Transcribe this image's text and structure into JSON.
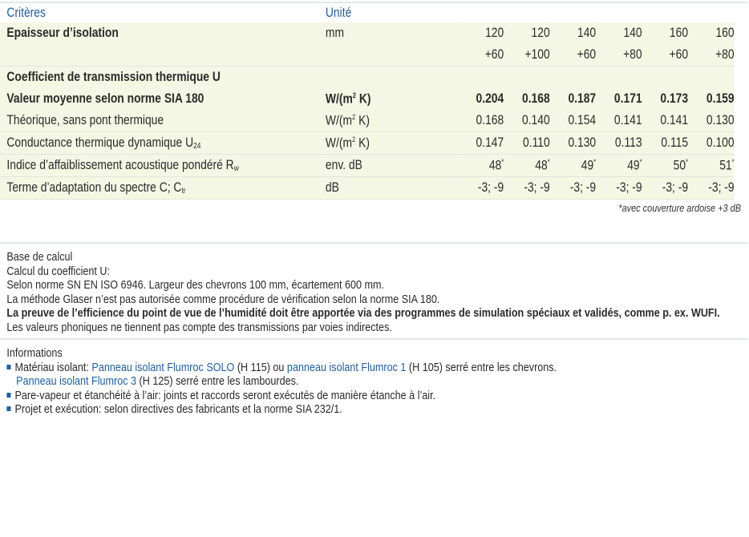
{
  "table": {
    "header": {
      "criteria": "Critères",
      "unit": "Unité"
    },
    "thickness": {
      "label": "Epaisseur d’isolation",
      "unit": "mm",
      "line1": [
        "120",
        "120",
        "140",
        "140",
        "160",
        "160"
      ],
      "line2": [
        "+60",
        "+100",
        "+60",
        "+80",
        "+60",
        "+80"
      ]
    },
    "coef_title": "Coefficient de transmission thermique U",
    "rows": [
      {
        "label": "Valeur moyenne selon norme SIA 180",
        "unit_base": "W/(m",
        "unit_sup": "2",
        "unit_end": " K)",
        "values": [
          "0.204",
          "0.168",
          "0.187",
          "0.171",
          "0.173",
          "0.159"
        ]
      },
      {
        "label": "Théorique, sans pont thermique",
        "unit_base": "W/(m",
        "unit_sup": "2",
        "unit_end": " K)",
        "values": [
          "0.168",
          "0.140",
          "0.154",
          "0.141",
          "0.141",
          "0.130"
        ]
      },
      {
        "label": "Conductance thermique dynamique U",
        "sub": "24",
        "unit_base": "W/(m",
        "unit_sup": "2",
        "unit_end": " K)",
        "values": [
          "0.147",
          "0.110",
          "0.130",
          "0.113",
          "0.115",
          "0.100"
        ]
      },
      {
        "label": "Indice d’affaiblissement acoustique pondéré R",
        "sub": "w",
        "unit": "env. dB",
        "values": [
          "48",
          "48",
          "49",
          "49",
          "50",
          "51"
        ],
        "mark": "*"
      },
      {
        "label": "Terme d’adaptation du spectre C; C",
        "sub": "tr",
        "unit": "dB",
        "values": [
          "-3; -9",
          "-3; -9",
          "-3; -9",
          "-3; -9",
          "-3; -9",
          "-3; -9"
        ]
      }
    ],
    "footnote": "*avec couverture ardoise +3 dB"
  },
  "base": {
    "title": "Base de calcul",
    "lines": [
      "Calcul du coefficient U:",
      "Selon norme SN EN ISO 6946. Largeur des chevrons 100 mm, écartement 600 mm.",
      "La méthode Glaser n’est pas autorisée comme procédure de vérification selon la norme SIA 180."
    ],
    "bold_line": "La preuve de l’efficience du point de vue de l’humidité doit être apportée via des programmes de simulation spéciaux et validés, comme p. ex. WUFI.",
    "last_line": "Les valeurs phoniques ne tiennent pas compte des transmissions par voies indirectes."
  },
  "info": {
    "title": "Informations",
    "item1": {
      "a": "Matériau isolant: ",
      "link1": "Panneau isolant Flumroc SOLO",
      "b": " (H 115) ou ",
      "link2": "panneau isolant Flumroc 1",
      "c": " (H 105) serré entre les chevrons.",
      "link3": "Panneau isolant Flumroc 3",
      "d": " (H 125) serré entre les lambourdes."
    },
    "item2": "Pare-vapeur et étanchéité à l’air: joints et raccords seront exécutés de manière étanche à l’air.",
    "item3": "Projet et exécution: selon directives des fabricants et la norme SIA 232/1."
  },
  "colors": {
    "accent": "#1f5fa6",
    "row_bg": "#f5f7e5"
  }
}
